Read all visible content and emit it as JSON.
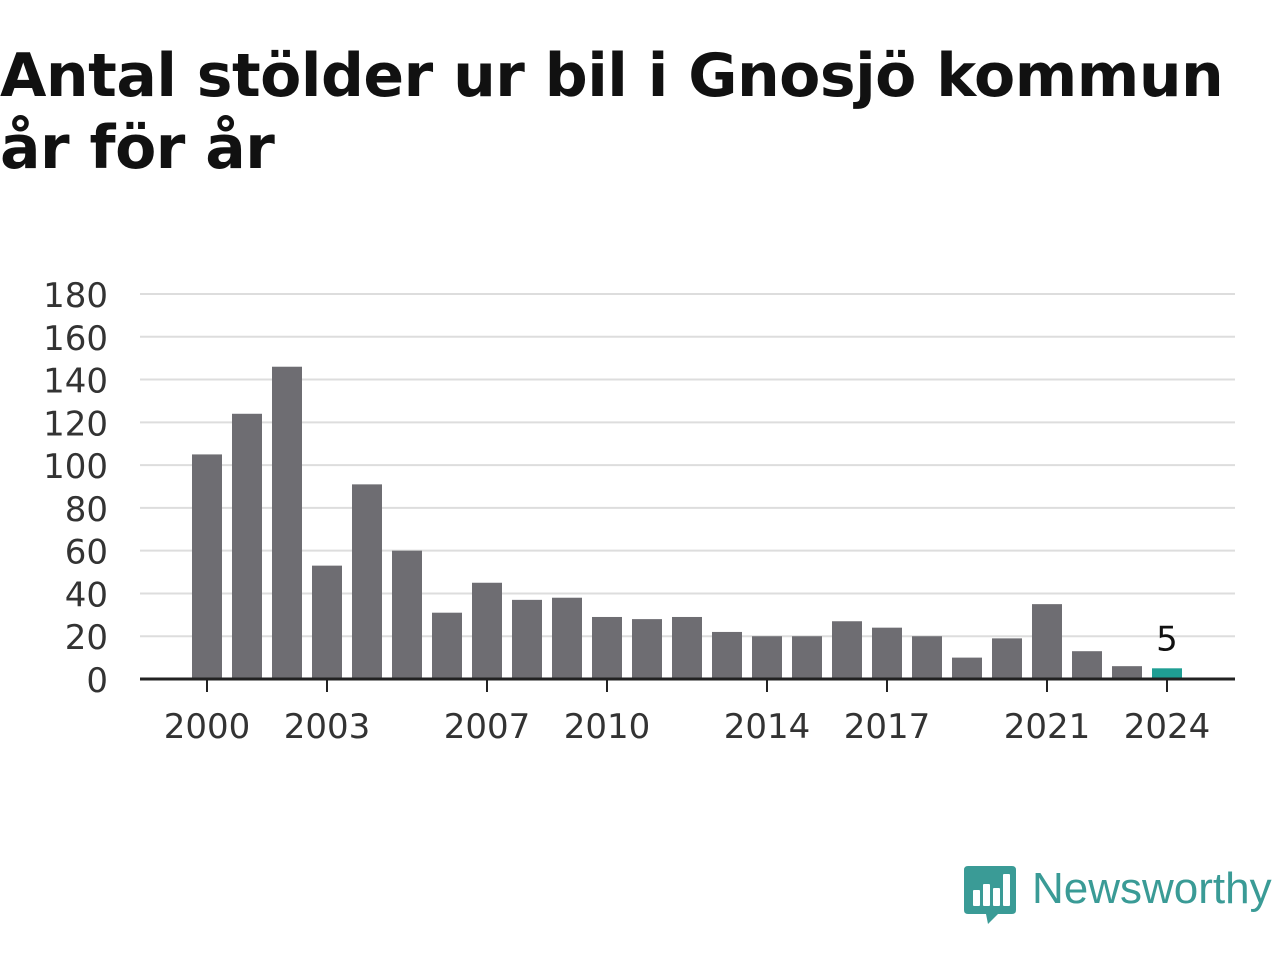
{
  "title": "Antal stölder ur bil i Gnosjö kommun år för år",
  "brand": {
    "name": "Newsworthy",
    "logo_icon": "bar-chart-speech-bubble-icon",
    "color": "#3a9b96"
  },
  "colors": {
    "bar": "#6e6d72",
    "highlight": "#1f9e94",
    "grid": "#dddddd",
    "axis": "#222222",
    "tick_text": "#333333"
  },
  "chart_data": {
    "type": "bar",
    "title": "Antal stölder ur bil i Gnosjö kommun år för år",
    "xlabel": "",
    "ylabel": "",
    "categories": [
      "2000",
      "2001",
      "2002",
      "2003",
      "2004",
      "2005",
      "2006",
      "2007",
      "2008",
      "2009",
      "2010",
      "2011",
      "2012",
      "2013",
      "2014",
      "2015",
      "2016",
      "2017",
      "2018",
      "2019",
      "2020",
      "2021",
      "2022",
      "2023",
      "2024"
    ],
    "values": [
      105,
      124,
      146,
      53,
      91,
      60,
      31,
      45,
      37,
      38,
      29,
      28,
      29,
      22,
      20,
      20,
      27,
      24,
      20,
      10,
      19,
      35,
      13,
      6,
      5
    ],
    "x_tick_labels": [
      "2000",
      "2003",
      "2007",
      "2010",
      "2014",
      "2017",
      "2021",
      "2024"
    ],
    "y_ticks": [
      0,
      20,
      40,
      60,
      80,
      100,
      120,
      140,
      160,
      180
    ],
    "ylim": [
      0,
      180
    ],
    "grid": true,
    "highlight_category": "2024",
    "annotations": [
      {
        "category": "2024",
        "text": "5"
      }
    ]
  }
}
